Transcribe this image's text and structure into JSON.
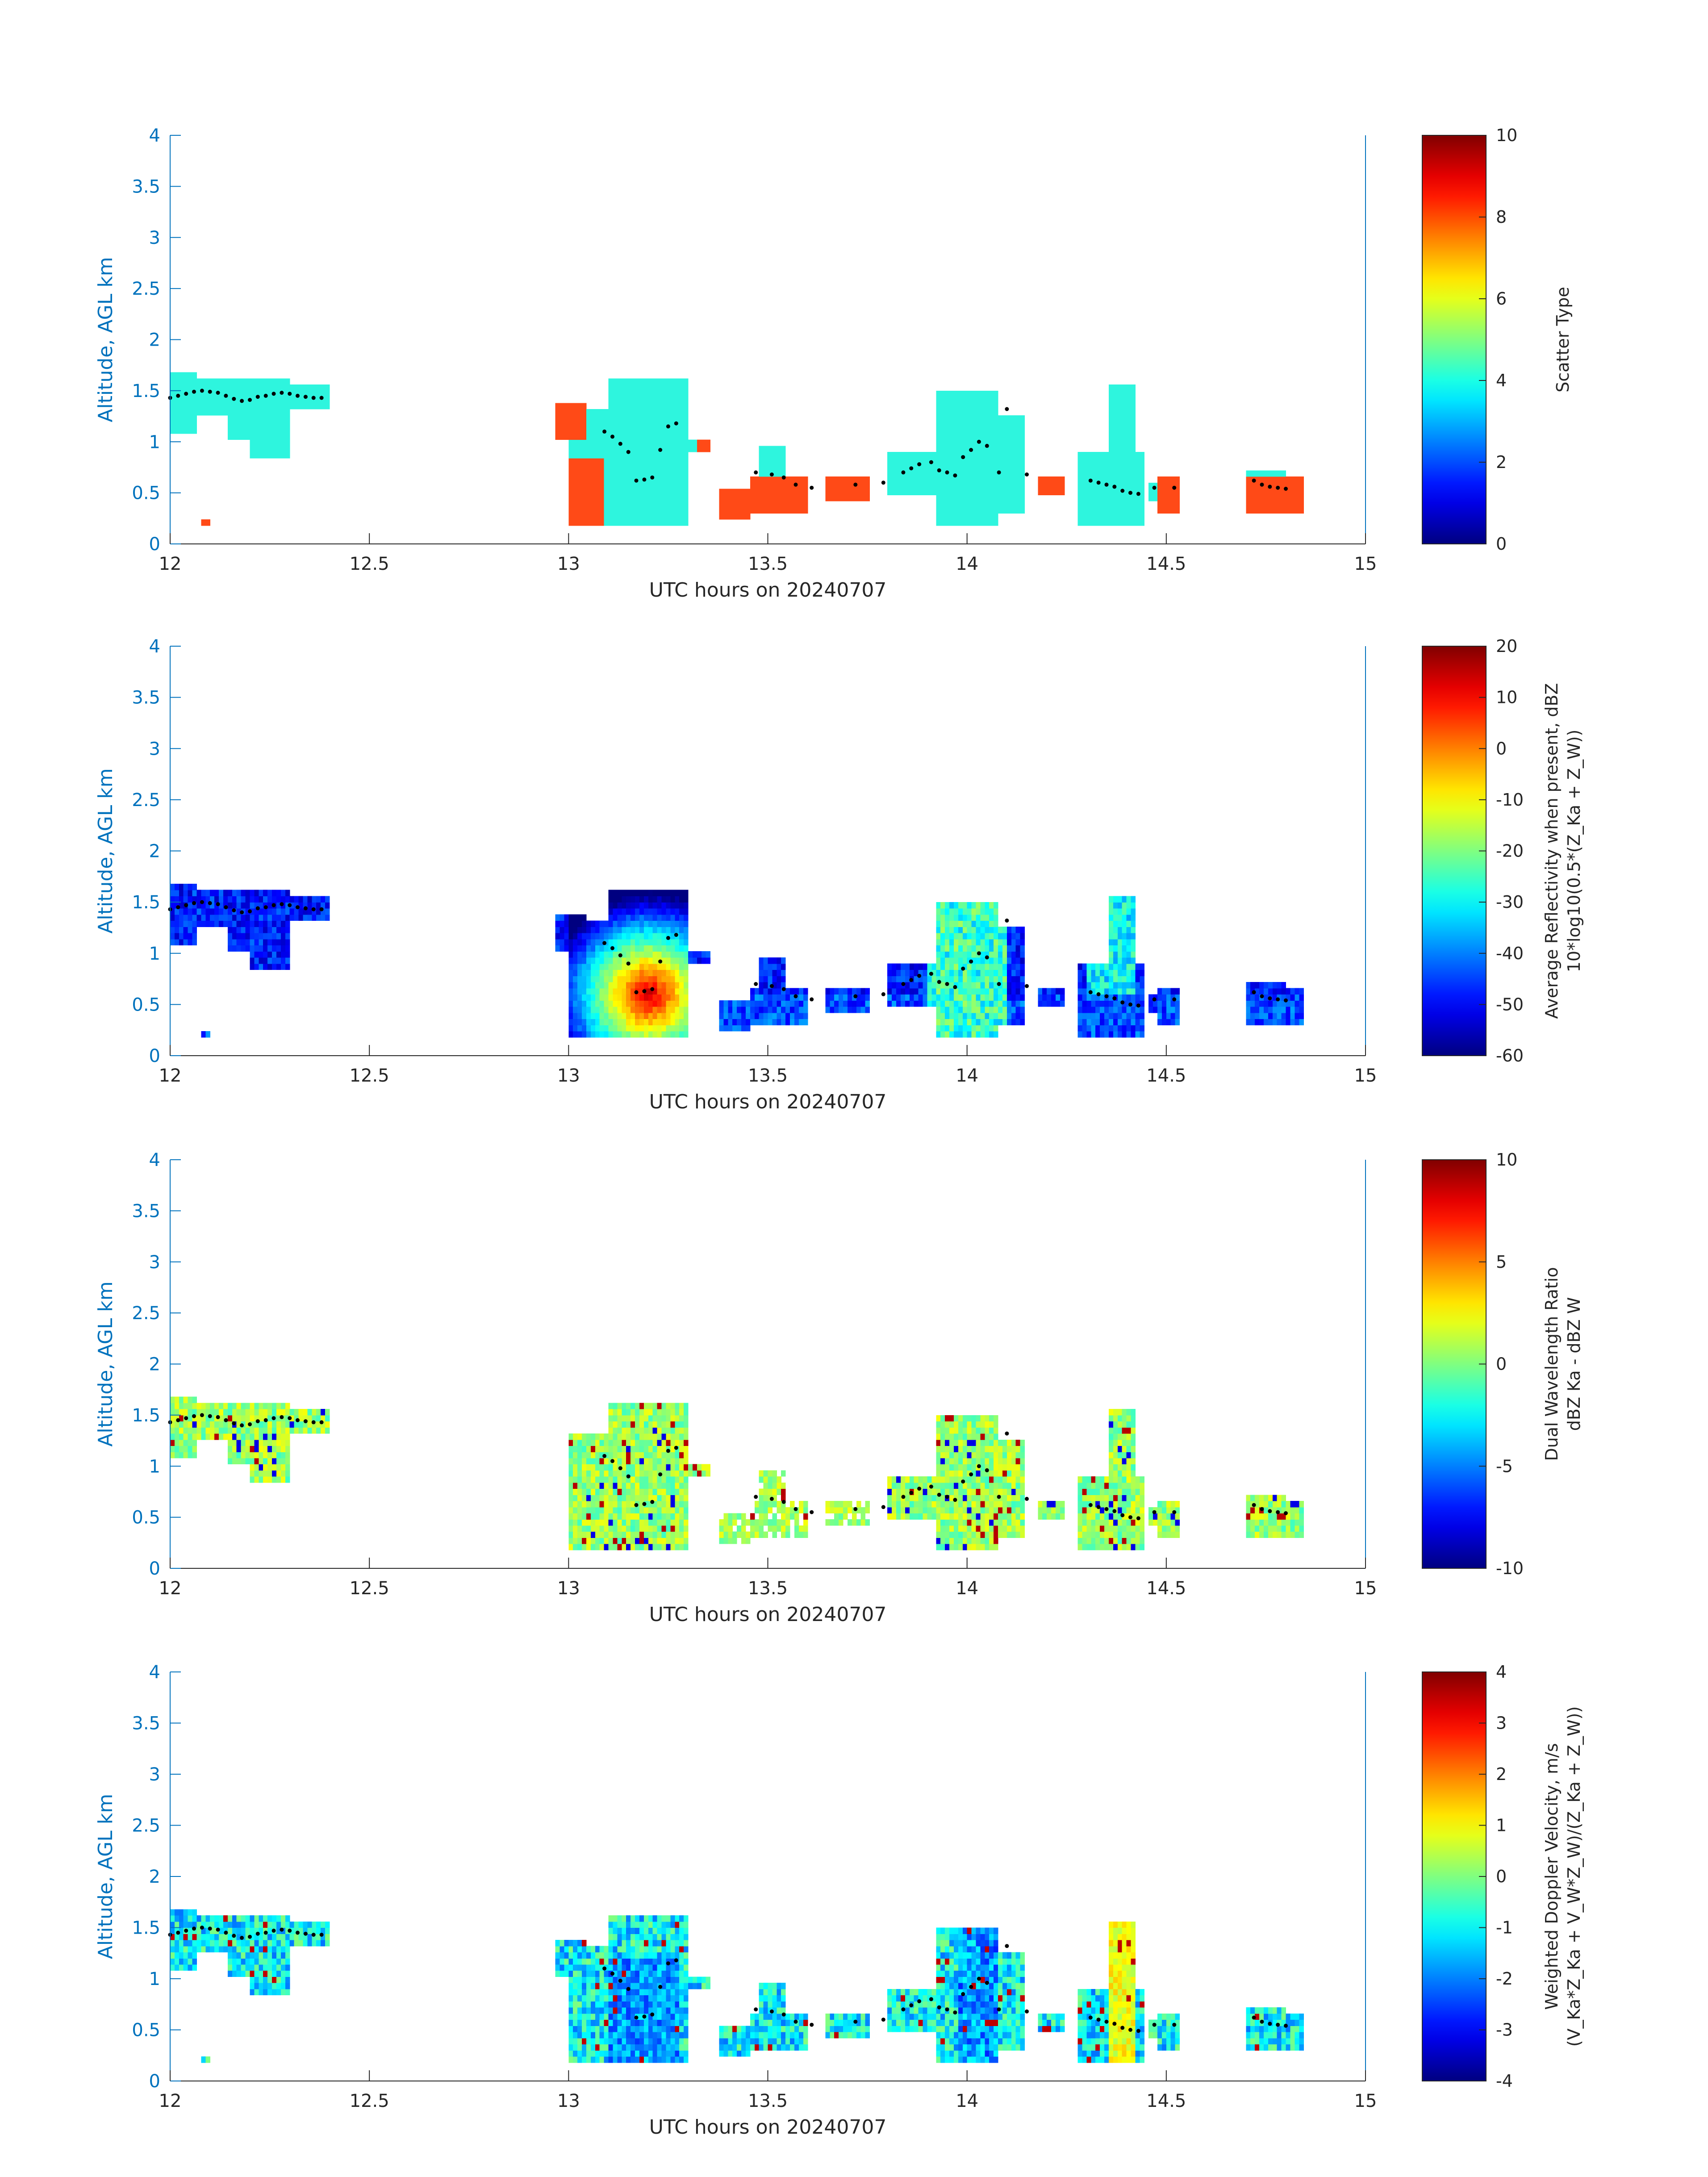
{
  "colors": {
    "axis_blue": "#0072BD",
    "axis_black": "#262626",
    "cloud_cyan": "#2EF5DE",
    "rain_orange": "#FF4A17",
    "dots": "#000000"
  },
  "chart_data": [
    {
      "id": "scatter-type",
      "type": "heatmap",
      "xlabel": "UTC hours on 20240707",
      "ylabel": "Altitude, AGL km",
      "xlim": [
        12,
        15
      ],
      "ylim": [
        0,
        4
      ],
      "xticks": [
        "12",
        "12.5",
        "13",
        "13.5",
        "14",
        "14.5",
        "15"
      ],
      "yticks": [
        "0",
        "0.5",
        "1",
        "1.5",
        "2",
        "2.5",
        "3",
        "3.5",
        "4"
      ],
      "colorbar": {
        "lines": [
          "Scatter Type"
        ],
        "clim": [
          0,
          10
        ],
        "ticks": [
          "0",
          "2",
          "4",
          "6",
          "8",
          "10"
        ]
      },
      "mode": "scatter"
    },
    {
      "id": "reflectivity",
      "type": "heatmap",
      "xlabel": "UTC hours on 20240707",
      "ylabel": "Altitude, AGL km",
      "xlim": [
        12,
        15
      ],
      "ylim": [
        0,
        4
      ],
      "xticks": [
        "12",
        "12.5",
        "13",
        "13.5",
        "14",
        "14.5",
        "15"
      ],
      "yticks": [
        "0",
        "0.5",
        "1",
        "1.5",
        "2",
        "2.5",
        "3",
        "3.5",
        "4"
      ],
      "colorbar": {
        "lines": [
          "Average Reflectivity when present, dBZ",
          "10*log10(0.5*(Z_Ka + Z_W))"
        ],
        "clim": [
          -60,
          20
        ],
        "ticks": [
          "-60",
          "-50",
          "-40",
          "-30",
          "-20",
          "-10",
          "0",
          "10",
          "20"
        ]
      },
      "mode": "refl"
    },
    {
      "id": "dwr",
      "type": "heatmap",
      "xlabel": "UTC hours on 20240707",
      "ylabel": "Altitude, AGL km",
      "xlim": [
        12,
        15
      ],
      "ylim": [
        0,
        4
      ],
      "xticks": [
        "12",
        "12.5",
        "13",
        "13.5",
        "14",
        "14.5",
        "15"
      ],
      "yticks": [
        "0",
        "0.5",
        "1",
        "1.5",
        "2",
        "2.5",
        "3",
        "3.5",
        "4"
      ],
      "colorbar": {
        "lines": [
          "Dual Wavelength Ratio",
          "dBZ Ka - dBZ W"
        ],
        "clim": [
          -10,
          10
        ],
        "ticks": [
          "-10",
          "-5",
          "0",
          "5",
          "10"
        ]
      },
      "mode": "dwr"
    },
    {
      "id": "doppler",
      "type": "heatmap",
      "xlabel": "UTC hours on 20240707",
      "ylabel": "Altitude, AGL km",
      "xlim": [
        12,
        15
      ],
      "ylim": [
        0,
        4
      ],
      "xticks": [
        "12",
        "12.5",
        "13",
        "13.5",
        "14",
        "14.5",
        "15"
      ],
      "yticks": [
        "0",
        "0.5",
        "1",
        "1.5",
        "2",
        "2.5",
        "3",
        "3.5",
        "4"
      ],
      "colorbar": {
        "lines": [
          "Weighted Doppler Velocity, m/s",
          "(V_Ka*Z_Ka + V_W*Z_W)/(Z_Ka + Z_W))"
        ],
        "clim": [
          -4,
          4
        ],
        "ticks": [
          "-4",
          "-3",
          "-2",
          "-1",
          "0",
          "1",
          "2",
          "3",
          "4"
        ]
      },
      "mode": "vel"
    }
  ],
  "cloud_regions": [
    {
      "t0": 12.0,
      "t1": 12.07,
      "zb": 1.1,
      "zt": 1.68
    },
    {
      "t0": 12.07,
      "t1": 12.2,
      "zb": 1.25,
      "zt": 1.6
    },
    {
      "t0": 12.14,
      "t1": 12.22,
      "zb": 1.0,
      "zt": 1.55
    },
    {
      "t0": 12.2,
      "t1": 12.3,
      "zb": 0.85,
      "zt": 1.62
    },
    {
      "t0": 12.3,
      "t1": 12.4,
      "zb": 1.3,
      "zt": 1.55
    },
    {
      "t0": 13.0,
      "t1": 13.3,
      "zb": 0.2,
      "zt": 1.35
    },
    {
      "t0": 13.1,
      "t1": 13.3,
      "zb": 0.2,
      "zt": 1.6
    },
    {
      "t0": 13.28,
      "t1": 13.34,
      "zb": 0.9,
      "zt": 1.05
    },
    {
      "t0": 13.48,
      "t1": 13.54,
      "zb": 0.3,
      "zt": 0.95
    },
    {
      "t0": 13.56,
      "t1": 13.6,
      "zb": 0.5,
      "zt": 0.62
    },
    {
      "t0": 13.8,
      "t1": 13.92,
      "zb": 0.5,
      "zt": 0.9
    },
    {
      "t0": 13.92,
      "t1": 14.08,
      "zb": 0.2,
      "zt": 1.5
    },
    {
      "t0": 14.08,
      "t1": 14.14,
      "zb": 0.3,
      "zt": 1.25
    },
    {
      "t0": 14.28,
      "t1": 14.44,
      "zb": 0.2,
      "zt": 0.9
    },
    {
      "t0": 14.36,
      "t1": 14.42,
      "zb": 0.6,
      "zt": 1.55
    },
    {
      "t0": 14.45,
      "t1": 14.53,
      "zb": 0.42,
      "zt": 0.6
    },
    {
      "t0": 14.7,
      "t1": 14.8,
      "zb": 0.3,
      "zt": 0.7
    }
  ],
  "rain_regions": [
    {
      "t0": 12.08,
      "t1": 12.1,
      "zb": 0.18,
      "zt": 0.24
    },
    {
      "t0": 12.97,
      "t1": 13.04,
      "zb": 1.0,
      "zt": 1.38
    },
    {
      "t0": 13.0,
      "t1": 13.09,
      "zb": 0.2,
      "zt": 0.85
    },
    {
      "t0": 13.32,
      "t1": 13.36,
      "zb": 0.9,
      "zt": 1.05
    },
    {
      "t0": 13.38,
      "t1": 13.46,
      "zb": 0.25,
      "zt": 0.55
    },
    {
      "t0": 13.45,
      "t1": 13.6,
      "zb": 0.3,
      "zt": 0.65
    },
    {
      "t0": 13.64,
      "t1": 13.76,
      "zb": 0.4,
      "zt": 0.65
    },
    {
      "t0": 14.18,
      "t1": 14.24,
      "zb": 0.45,
      "zt": 0.65
    },
    {
      "t0": 14.48,
      "t1": 14.53,
      "zb": 0.3,
      "zt": 0.65
    },
    {
      "t0": 14.7,
      "t1": 14.84,
      "zb": 0.32,
      "zt": 0.65
    }
  ],
  "core": {
    "t": 13.2,
    "z": 0.6,
    "peak_dbz": 12
  },
  "cloud_base_dots": [
    [
      12.0,
      1.43
    ],
    [
      12.02,
      1.45
    ],
    [
      12.04,
      1.47
    ],
    [
      12.06,
      1.49
    ],
    [
      12.08,
      1.5
    ],
    [
      12.1,
      1.49
    ],
    [
      12.12,
      1.48
    ],
    [
      12.14,
      1.45
    ],
    [
      12.16,
      1.42
    ],
    [
      12.18,
      1.4
    ],
    [
      12.2,
      1.41
    ],
    [
      12.22,
      1.44
    ],
    [
      12.24,
      1.45
    ],
    [
      12.26,
      1.47
    ],
    [
      12.28,
      1.48
    ],
    [
      12.3,
      1.47
    ],
    [
      12.32,
      1.45
    ],
    [
      12.34,
      1.44
    ],
    [
      12.36,
      1.43
    ],
    [
      12.38,
      1.43
    ],
    [
      13.09,
      1.1
    ],
    [
      13.11,
      1.05
    ],
    [
      13.13,
      0.98
    ],
    [
      13.15,
      0.9
    ],
    [
      13.17,
      0.62
    ],
    [
      13.19,
      0.63
    ],
    [
      13.21,
      0.65
    ],
    [
      13.23,
      0.92
    ],
    [
      13.25,
      1.15
    ],
    [
      13.27,
      1.18
    ],
    [
      13.47,
      0.7
    ],
    [
      13.51,
      0.68
    ],
    [
      13.54,
      0.65
    ],
    [
      13.57,
      0.58
    ],
    [
      13.61,
      0.55
    ],
    [
      13.72,
      0.58
    ],
    [
      13.79,
      0.6
    ],
    [
      13.84,
      0.7
    ],
    [
      13.86,
      0.74
    ],
    [
      13.88,
      0.78
    ],
    [
      13.91,
      0.8
    ],
    [
      13.93,
      0.72
    ],
    [
      13.95,
      0.7
    ],
    [
      13.97,
      0.67
    ],
    [
      13.99,
      0.85
    ],
    [
      14.01,
      0.92
    ],
    [
      14.03,
      1.0
    ],
    [
      14.05,
      0.96
    ],
    [
      14.08,
      0.7
    ],
    [
      14.1,
      1.32
    ],
    [
      14.15,
      0.68
    ],
    [
      14.31,
      0.62
    ],
    [
      14.33,
      0.6
    ],
    [
      14.35,
      0.58
    ],
    [
      14.37,
      0.56
    ],
    [
      14.39,
      0.52
    ],
    [
      14.41,
      0.5
    ],
    [
      14.43,
      0.49
    ],
    [
      14.47,
      0.55
    ],
    [
      14.52,
      0.55
    ],
    [
      14.72,
      0.62
    ],
    [
      14.74,
      0.58
    ],
    [
      14.76,
      0.56
    ],
    [
      14.78,
      0.55
    ],
    [
      14.8,
      0.54
    ]
  ]
}
